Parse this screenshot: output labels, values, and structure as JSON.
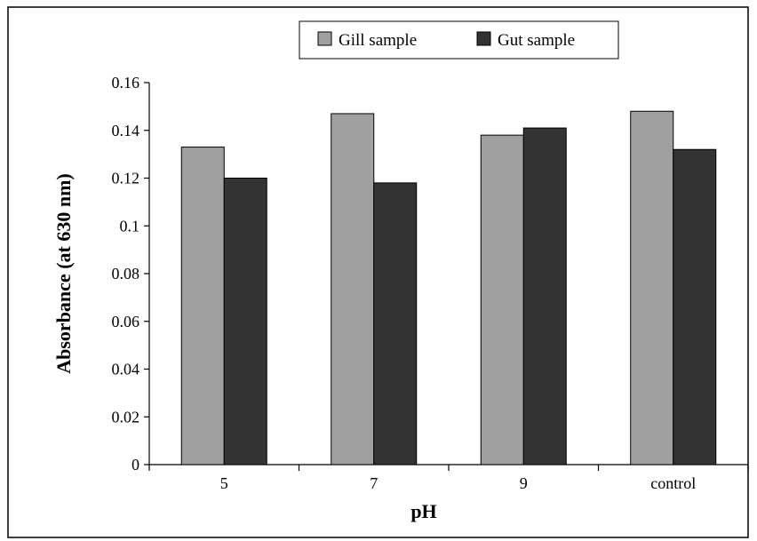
{
  "chart_data": {
    "type": "bar",
    "categories": [
      "5",
      "7",
      "9",
      "control"
    ],
    "series": [
      {
        "name": "Gill sample",
        "values": [
          0.133,
          0.147,
          0.138,
          0.148
        ],
        "color": "#a0a0a0"
      },
      {
        "name": "Gut sample",
        "values": [
          0.12,
          0.118,
          0.141,
          0.132
        ],
        "color": "#333333"
      }
    ],
    "xlabel": "pH",
    "ylabel": "Absorbance (at 630 nm)",
    "ylim": [
      0,
      0.16
    ],
    "yticks": [
      "0",
      "0.02",
      "0.04",
      "0.06",
      "0.08",
      "0.1",
      "0.12",
      "0.14",
      "0.16"
    ],
    "grid": false,
    "legend_position": "top"
  }
}
